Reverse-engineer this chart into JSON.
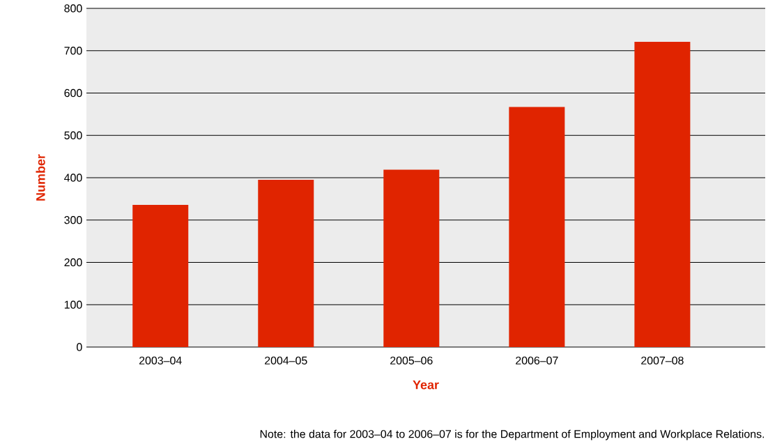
{
  "chart_data": {
    "type": "bar",
    "xlabel": "Year",
    "ylabel": "Number",
    "categories": [
      "2003–04",
      "2004–05",
      "2005–06",
      "2006–07",
      "2007–08"
    ],
    "values": [
      336,
      395,
      419,
      567,
      721
    ],
    "color": "#e02400",
    "ylim": [
      0,
      800
    ],
    "yticks": [
      0,
      100,
      200,
      300,
      400,
      500,
      600,
      700,
      800
    ],
    "grid": "y",
    "annotations": [
      "Note: the data for 2003–04 to 2006–07 is for the Department of Employment and Workplace Relations."
    ]
  }
}
